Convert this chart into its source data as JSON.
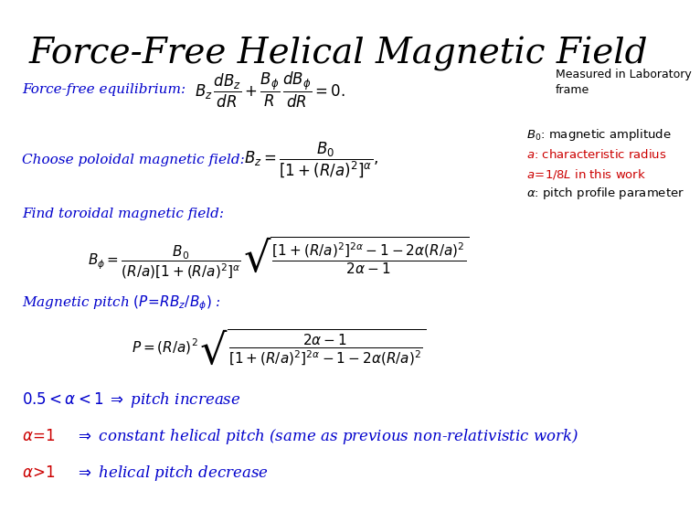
{
  "title": "Force-Free Helical Magnetic Field",
  "title_fontsize": 28,
  "background_color": "#ffffff",
  "blue": "#0000cc",
  "red": "#cc0000",
  "black": "#000000",
  "line1_label": "Force-free equilibrium:",
  "line1_eq": "$B_z\\,\\dfrac{dB_z}{dR} + \\dfrac{B_\\phi}{R}\\,\\dfrac{dB_\\phi}{dR} = 0.$",
  "line1_note": "Measured in Laboratory\nframe",
  "line2_label": "Choose poloidal magnetic field:",
  "line2_eq": "$B_z = \\dfrac{B_0}{[1+(R/a)^2]^\\alpha},$",
  "line2_note1": "$B_0$: magnetic amplitude",
  "line2_note2": "$a$: characteristic radius",
  "line2_note3": "$a\\!=\\!1/8L$ in this work",
  "line2_note4": "$\\alpha$: pitch profile parameter",
  "line3_label": "Find toroidal magnetic field:",
  "line3_eq": "$B_\\phi = \\dfrac{B_0}{(R/a)[1+(R/a)^2]^\\alpha}\\,\\sqrt{\\dfrac{[1+(R/a)^2]^{2\\alpha} - 1 - 2\\alpha(R/a)^2}{2\\alpha - 1}}$",
  "line4_label": "Magnetic pitch $(P\\!=\\!RB_z/B_\\phi)$ :",
  "line4_eq": "$P = (R/a)^2\\,\\sqrt{\\dfrac{2\\alpha - 1}{[1+(R/a)^2]^{2\\alpha} - 1 - 2\\alpha(R/a)^2}}$",
  "line5": "$0.5 < \\alpha < 1 \\;\\Rightarrow$ pitch increase",
  "line6_italic": "$\\alpha\\!=\\!1$",
  "line6_rest": "$\\Rightarrow$ constant helical pitch (same as previous non-relativistic work)",
  "line7_italic": "$\\alpha\\!>\\!1$",
  "line7_rest": "$\\Rightarrow$ helical pitch decrease"
}
